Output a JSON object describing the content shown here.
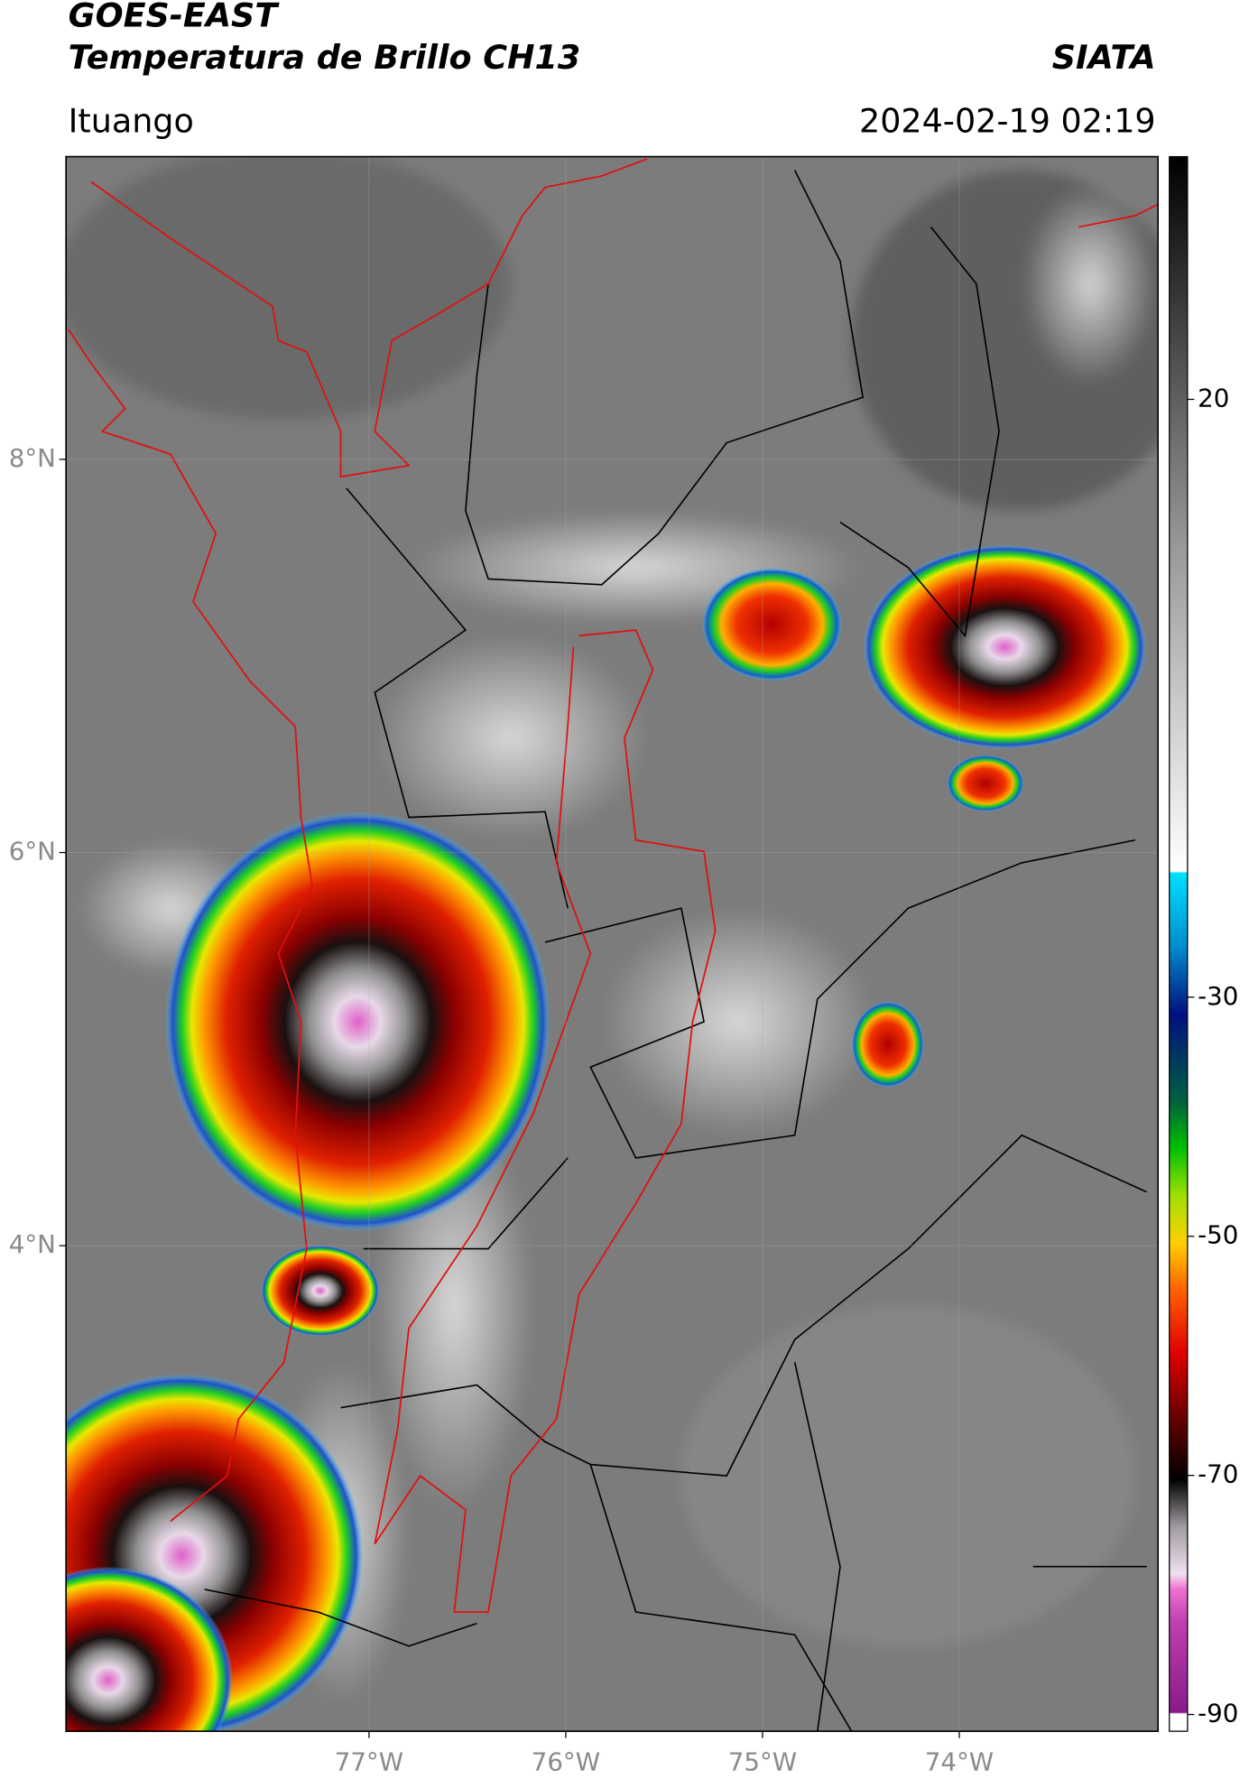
{
  "header": {
    "title": "GOES-EAST",
    "subtitle": "Temperatura de Brillo CH13",
    "organization": "SIATA",
    "location": "Ituango",
    "datetime": "2024-02-19 02:19"
  },
  "map": {
    "lonlim": [
      -78.54,
      -72.99
    ],
    "latlim": [
      1.53,
      9.54
    ],
    "lat_ticks": [
      {
        "value": 8,
        "label": "8°N"
      },
      {
        "value": 6,
        "label": "6°N"
      },
      {
        "value": 4,
        "label": "4°N"
      }
    ],
    "lon_ticks": [
      {
        "value": -77,
        "label": "77°W"
      },
      {
        "value": -76,
        "label": "76°W"
      },
      {
        "value": -75,
        "label": "75°W"
      },
      {
        "value": -74,
        "label": "74°W"
      }
    ]
  },
  "colorbar": {
    "range": [
      -91.4,
      40.3
    ],
    "ticks": [
      20,
      -30,
      -50,
      -70,
      -90
    ]
  }
}
